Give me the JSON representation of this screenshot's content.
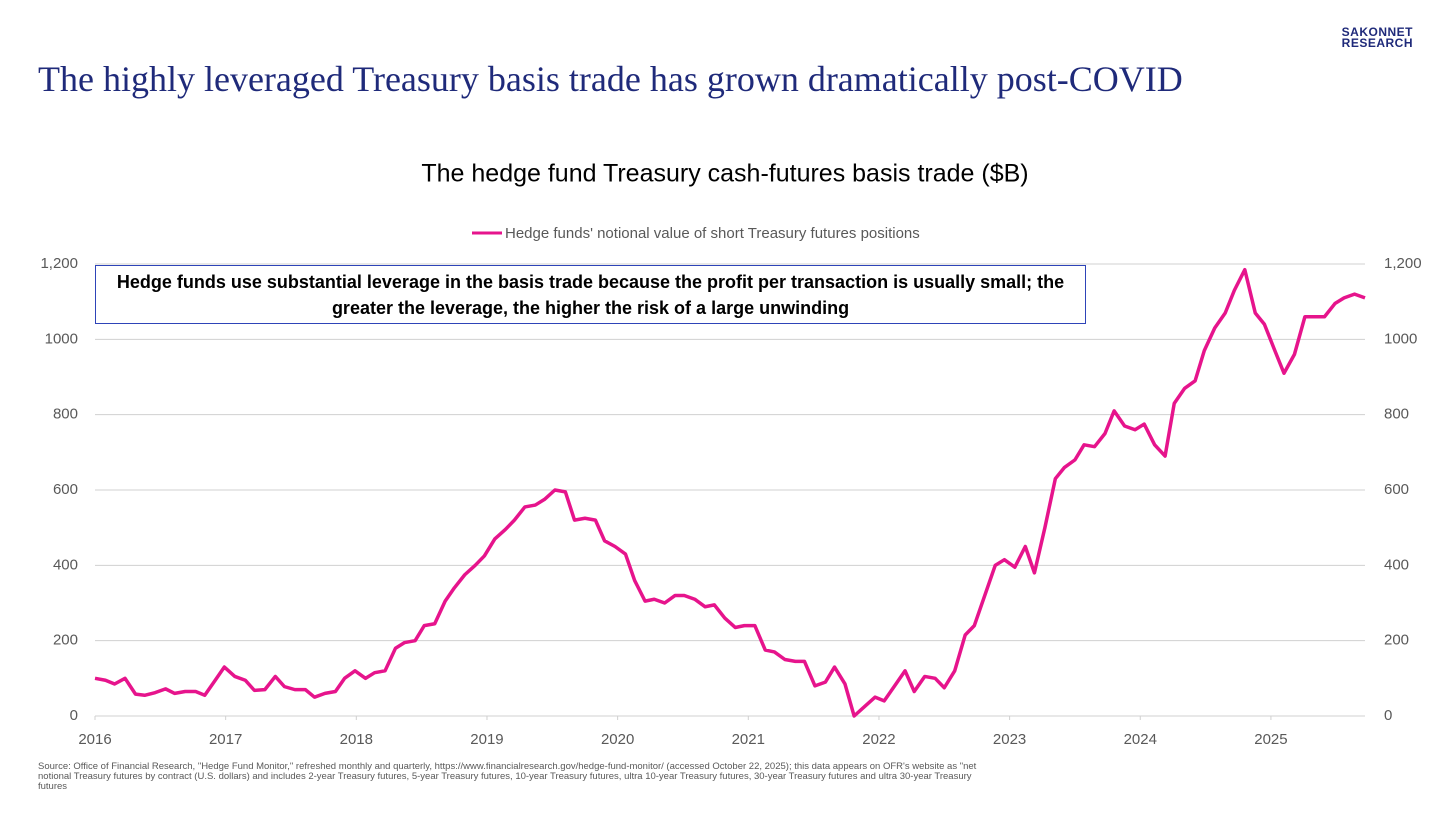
{
  "header": {
    "title": "The highly leveraged Treasury basis trade has grown dramatically post-COVID",
    "logo": [
      "SAKONNET",
      "RESEARCH"
    ]
  },
  "chart_data": {
    "type": "line",
    "title": "The hedge fund Treasury cash-futures basis trade ($B)",
    "annotation": "Hedge funds use substantial leverage in the basis trade because the profit per transaction is usually small; the greater the leverage, the higher the risk of a large unwinding",
    "x": [
      2016.0,
      2016.08,
      2016.15,
      2016.23,
      2016.31,
      2016.38,
      2016.46,
      2016.54,
      2016.61,
      2016.69,
      2016.77,
      2016.84,
      2016.92,
      2016.99,
      2017.07,
      2017.15,
      2017.22,
      2017.3,
      2017.38,
      2017.45,
      2017.53,
      2017.61,
      2017.68,
      2017.76,
      2017.84,
      2017.91,
      2017.99,
      2018.07,
      2018.14,
      2018.22,
      2018.3,
      2018.37,
      2018.45,
      2018.52,
      2018.6,
      2018.68,
      2018.75,
      2018.83,
      2018.91,
      2018.98,
      2019.06,
      2019.14,
      2019.21,
      2019.29,
      2019.37,
      2019.44,
      2019.52,
      2019.6,
      2019.67,
      2019.75,
      2019.83,
      2019.9,
      2019.98,
      2020.06,
      2020.13,
      2020.21,
      2020.28,
      2020.36,
      2020.44,
      2020.51,
      2020.59,
      2020.67,
      2020.74,
      2020.82,
      2020.9,
      2020.97,
      2021.05,
      2021.13,
      2021.2,
      2021.28,
      2021.36,
      2021.43,
      2021.51,
      2021.59,
      2021.66,
      2021.74,
      2021.81,
      2021.89,
      2021.97,
      2022.04,
      2022.12,
      2022.2,
      2022.27,
      2022.35,
      2022.43,
      2022.5,
      2022.58,
      2022.66,
      2022.73,
      2022.81,
      2022.89,
      2022.96,
      2023.04,
      2023.12,
      2023.19,
      2023.27,
      2023.35,
      2023.42,
      2023.5,
      2023.57,
      2023.65,
      2023.73,
      2023.8,
      2023.88,
      2023.96,
      2024.03,
      2024.11,
      2024.19,
      2024.26,
      2024.34,
      2024.42,
      2024.49,
      2024.57,
      2024.65,
      2024.72,
      2024.8,
      2024.88,
      2024.95,
      2025.03,
      2025.1,
      2025.18,
      2025.26,
      2025.33,
      2025.41,
      2025.49,
      2025.56,
      2025.64,
      2025.72
    ],
    "series": [
      {
        "name": "Hedge funds' notional value of short Treasury futures positions",
        "color": "#e6148c",
        "values": [
          100,
          95,
          85,
          100,
          58,
          55,
          62,
          72,
          60,
          65,
          65,
          55,
          95,
          130,
          105,
          95,
          68,
          70,
          105,
          78,
          70,
          70,
          50,
          60,
          65,
          100,
          120,
          100,
          115,
          120,
          180,
          195,
          200,
          240,
          245,
          305,
          340,
          375,
          400,
          425,
          470,
          495,
          520,
          555,
          560,
          575,
          600,
          595,
          520,
          525,
          520,
          465,
          450,
          430,
          360,
          305,
          310,
          300,
          320,
          320,
          310,
          290,
          295,
          260,
          235,
          240,
          240,
          175,
          170,
          150,
          145,
          145,
          80,
          90,
          130,
          85,
          0,
          25,
          50,
          40,
          80,
          120,
          65,
          105,
          100,
          75,
          120,
          215,
          240,
          320,
          400,
          415,
          395,
          450,
          380,
          500,
          630,
          660,
          680,
          720,
          715,
          750,
          810,
          770,
          760,
          775,
          720,
          690,
          830,
          870,
          890,
          970,
          1030,
          1070,
          1130,
          1185,
          1070,
          1040,
          970,
          910,
          960,
          1060,
          1060,
          1060,
          1095,
          1110,
          1120,
          1110
        ]
      }
    ],
    "xlim": [
      2016,
      2025.72
    ],
    "xticks": [
      2016,
      2017,
      2018,
      2019,
      2020,
      2021,
      2022,
      2023,
      2024,
      2025
    ],
    "ylim": [
      0,
      1200
    ],
    "yticks": [
      0,
      200,
      400,
      600,
      800,
      1000,
      {
        "value": 1200,
        "label": "1,200"
      }
    ],
    "y2lim": [
      0,
      1200
    ],
    "y2ticks": [
      0,
      200,
      400,
      600,
      800,
      1000,
      {
        "value": 1200,
        "label": "1,200"
      }
    ],
    "grid": true,
    "legend": "top",
    "source": "Source: Office of Financial Research, \"Hedge Fund Monitor,\" refreshed monthly and quarterly, https://www.financialresearch.gov/hedge-fund-monitor/ (accessed October 22, 2025); this data appears on OFR's website as \"net notional Treasury futures by contract (U.S. dollars) and includes 2-year Treasury futures, 5-year Treasury futures, 10-year Treasury futures, ultra 10-year Treasury futures, 30-year Treasury futures and ultra 30-year Treasury futures"
  }
}
